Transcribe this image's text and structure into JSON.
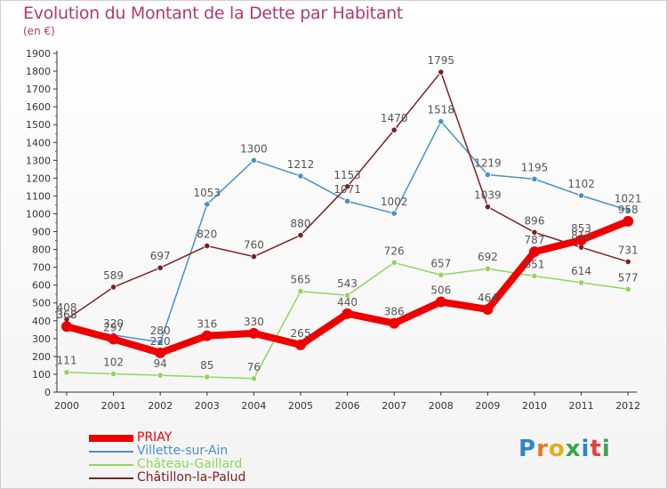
{
  "title": "Evolution du Montant de la Dette par Habitant",
  "subtitle": "(en €)",
  "logo_text": "Proxiti",
  "chart_data": {
    "type": "line",
    "x": [
      "2000",
      "2001",
      "2002",
      "2003",
      "2004",
      "2005",
      "2006",
      "2007",
      "2008",
      "2009",
      "2010",
      "2011",
      "2012"
    ],
    "ylim": [
      0,
      1900
    ],
    "yticks": [
      0,
      100,
      200,
      300,
      400,
      500,
      600,
      700,
      800,
      900,
      1000,
      1100,
      1200,
      1300,
      1400,
      1500,
      1600,
      1700,
      1800,
      1900
    ],
    "grid": false,
    "legend_position": "bottom-left",
    "series": [
      {
        "name": "PRIAY",
        "color": "#ee0000",
        "values": [
          368,
          297,
          220,
          316,
          330,
          265,
          440,
          386,
          506,
          464,
          787,
          853,
          958
        ]
      },
      {
        "name": "Villette-sur-Ain",
        "color": "#4a90c8",
        "values": [
          368,
          320,
          280,
          1053,
          1300,
          1212,
          1071,
          1002,
          1518,
          1219,
          1195,
          1102,
          1021
        ]
      },
      {
        "name": "Château-Gaillard",
        "color": "#8fd65a",
        "values": [
          111,
          102,
          94,
          85,
          76,
          565,
          543,
          726,
          657,
          692,
          651,
          614,
          577
        ]
      },
      {
        "name": "Châtillon-la-Palud",
        "color": "#7a2222",
        "values": [
          408,
          589,
          697,
          820,
          760,
          880,
          1153,
          1470,
          1795,
          1039,
          896,
          812,
          731
        ]
      }
    ]
  }
}
